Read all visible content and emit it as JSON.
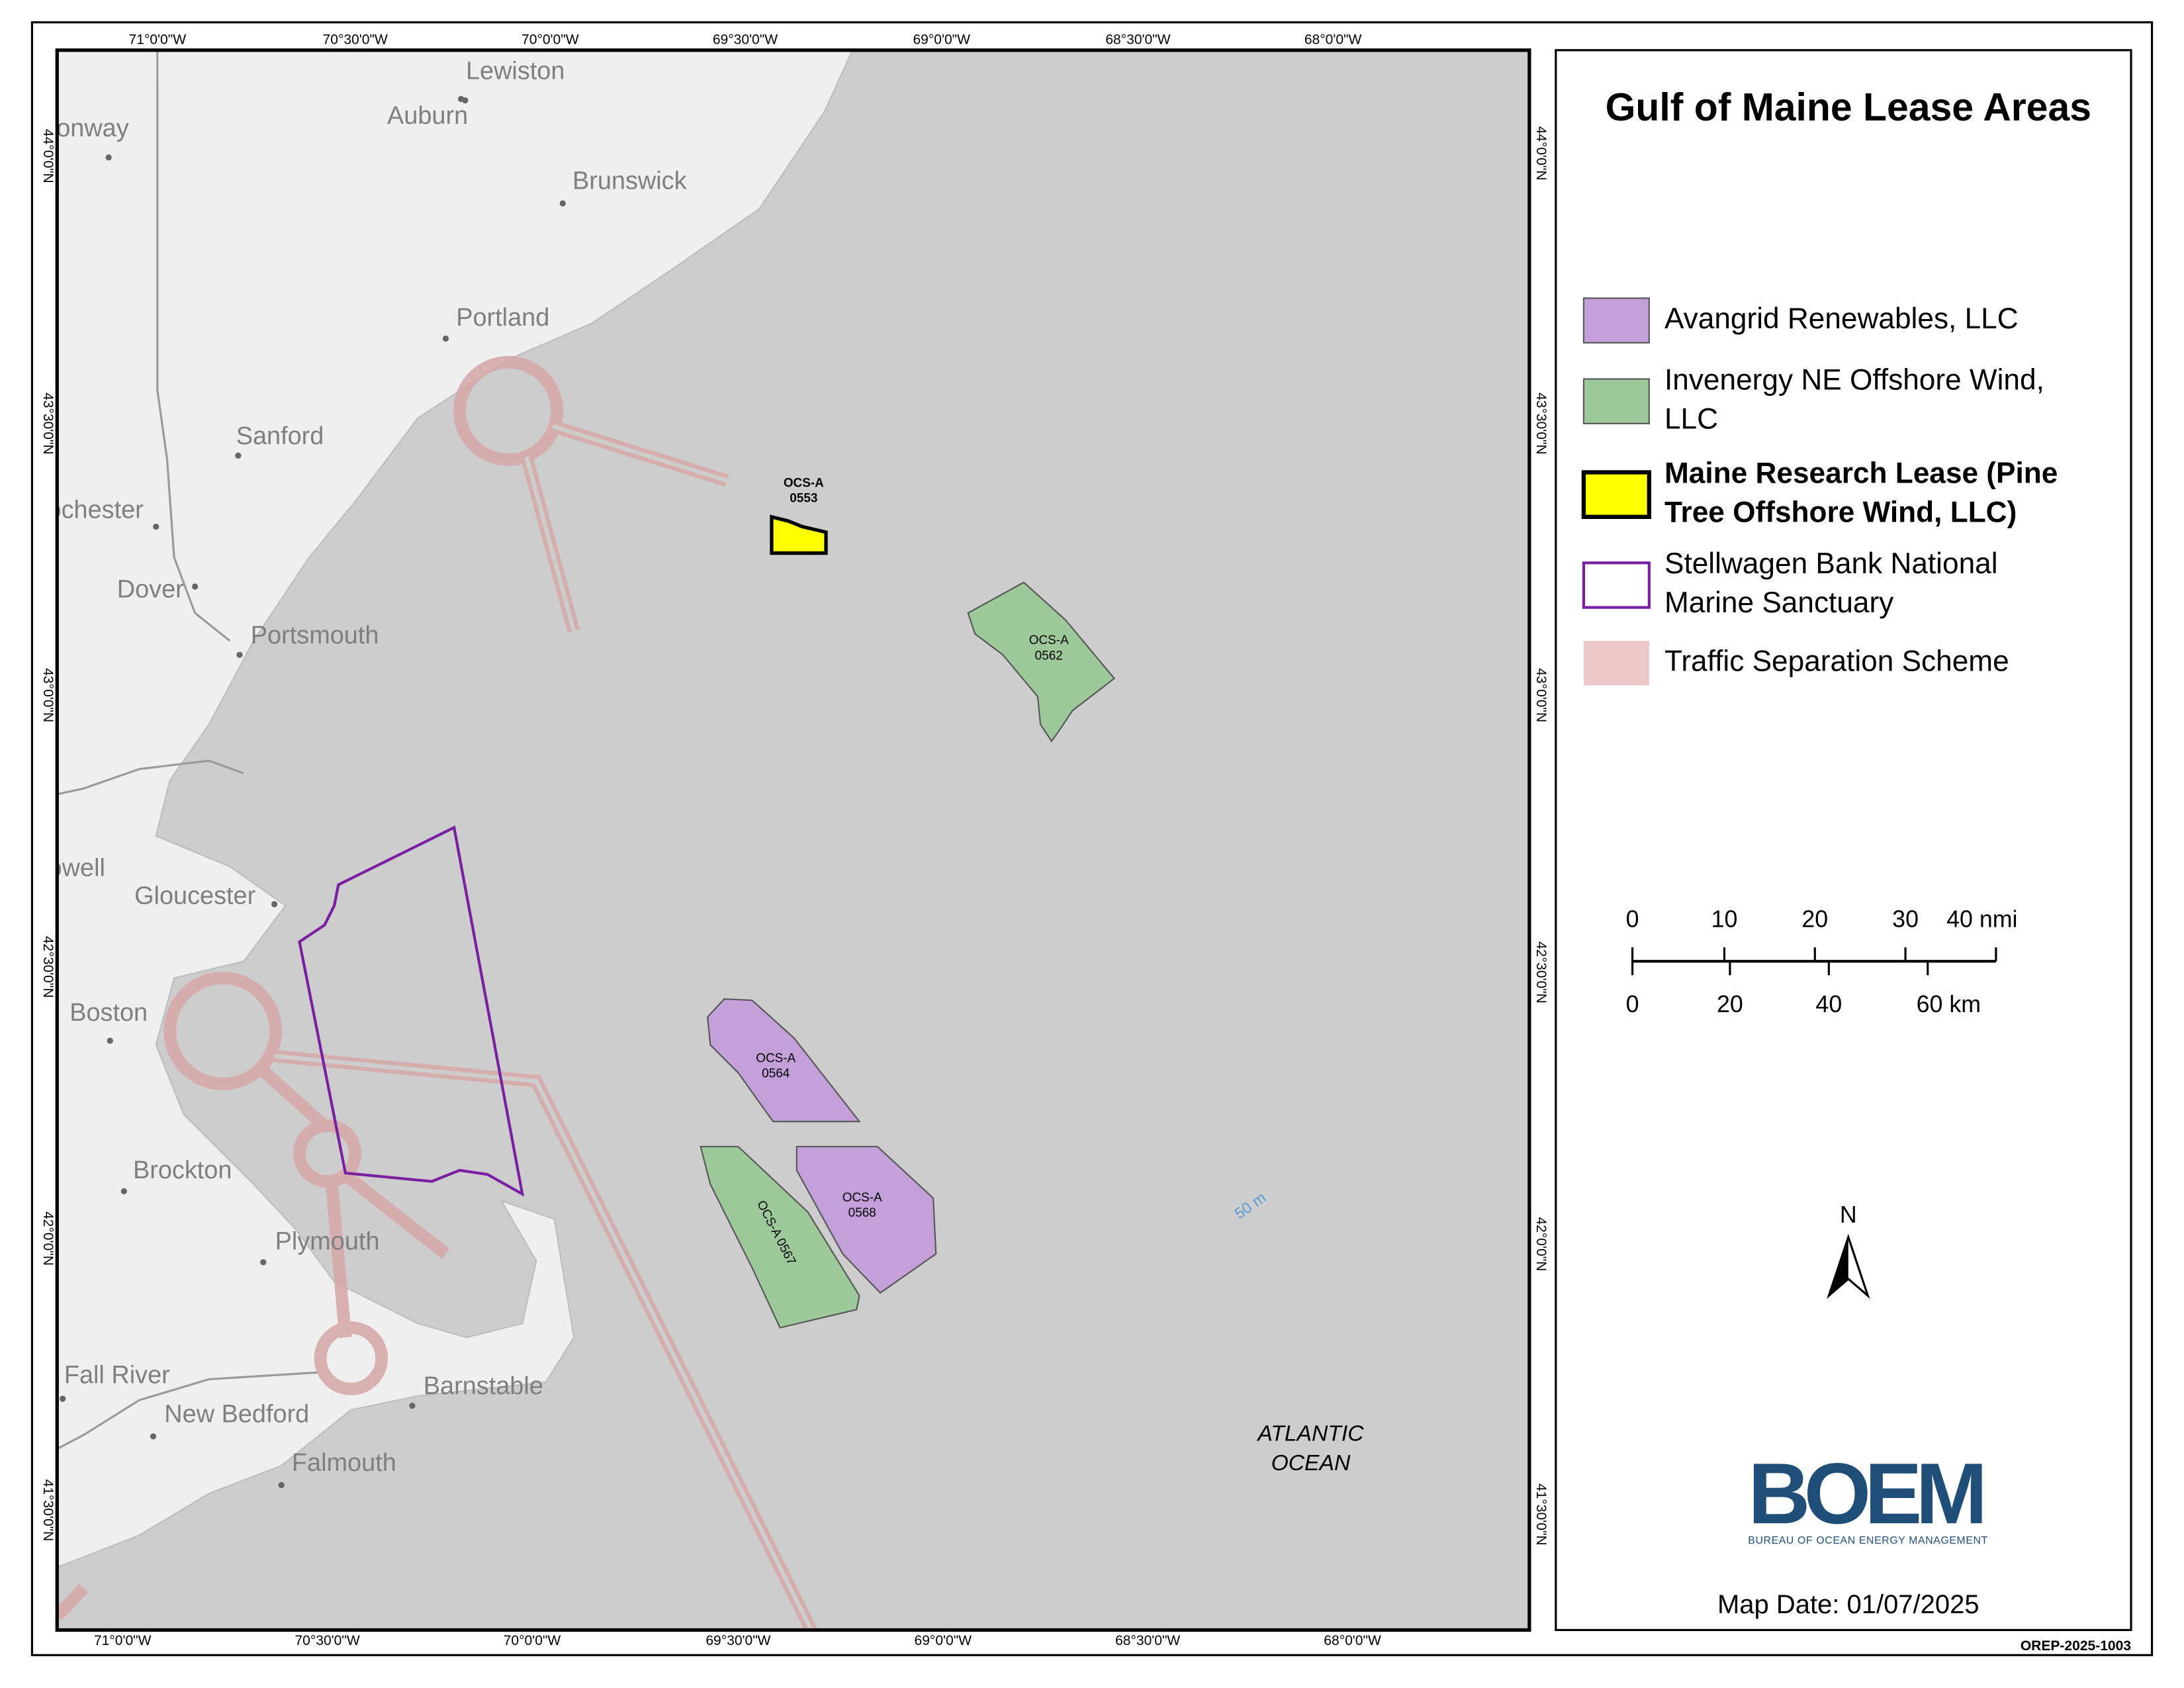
{
  "title": "Gulf of Maine Lease Areas",
  "legend": [
    {
      "lines": [
        "Avangrid Renewables, LLC"
      ]
    },
    {
      "lines": [
        "Invenergy NE Offshore Wind,",
        "LLC"
      ]
    },
    {
      "lines": [
        "Maine Research Lease (Pine",
        "Tree Offshore Wind, LLC)"
      ]
    },
    {
      "lines": [
        "Stellwagen Bank National",
        "Marine Sanctuary"
      ]
    },
    {
      "lines": [
        "Traffic Separation Scheme"
      ]
    }
  ],
  "graticule": {
    "top": [
      "71°0'0\"W",
      "70°30'0\"W",
      "70°0'0\"W",
      "69°30'0\"W",
      "69°0'0\"W",
      "68°30'0\"W",
      "68°0'0\"W"
    ],
    "bottom": [
      "71°0'0\"W",
      "70°30'0\"W",
      "70°0'0\"W",
      "69°30'0\"W",
      "69°0'0\"W",
      "68°30'0\"W",
      "68°0'0\"W"
    ],
    "left": [
      "44°0'0\"N",
      "43°30'0\"N",
      "43°0'0\"N",
      "42°30'0\"N",
      "42°0'0\"N",
      "41°30'0\"N"
    ],
    "right": [
      "44°0'0\"N",
      "43°30'0\"N",
      "43°0'0\"N",
      "42°30'0\"N",
      "42°0'0\"N",
      "41°30'0\"N"
    ]
  },
  "places": [
    "Lewiston",
    "Auburn",
    "Conway",
    "Brunswick",
    "Portland",
    "Sanford",
    "Rochester",
    "Dover",
    "Portsmouth",
    "Lowell",
    "Gloucester",
    "Boston",
    "Brockton",
    "Plymouth",
    "Fall River",
    "Barnstable",
    "New Bedford",
    "Falmouth"
  ],
  "leases": [
    {
      "lines": [
        "OCS-A",
        "0553"
      ]
    },
    {
      "lines": [
        "OCS-A",
        "0562"
      ]
    },
    {
      "lines": [
        "OCS-A",
        "0564"
      ]
    },
    {
      "lines": [
        "OCS-A",
        "0568"
      ]
    },
    {
      "lines": [
        "OCS-A 0567"
      ]
    }
  ],
  "ocean_label": [
    "ATLANTIC",
    "OCEAN"
  ],
  "depth_label": "50 m",
  "north": "N",
  "scale": {
    "nmi": [
      "0",
      "10",
      "20",
      "30",
      "40 nmi"
    ],
    "km": [
      "0",
      "20",
      "40",
      "60 km"
    ]
  },
  "logo": {
    "name": "BOEM",
    "subtitle": "BUREAU OF OCEAN ENERGY MANAGEMENT"
  },
  "map_date": "Map Date: 01/07/2025",
  "doc_id": "OREP-2025-1003"
}
